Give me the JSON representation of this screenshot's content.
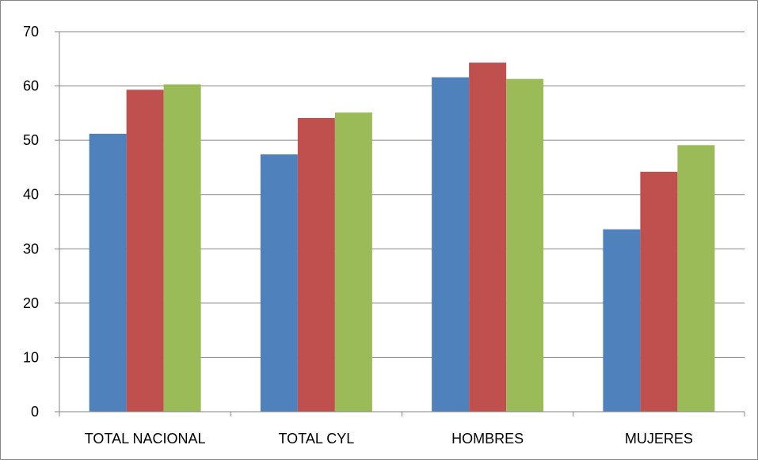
{
  "chart_data": {
    "type": "bar",
    "title": "",
    "xlabel": "",
    "ylabel": "",
    "categories": [
      "TOTAL NACIONAL",
      "TOTAL CYL",
      "HOMBRES",
      "MUJERES"
    ],
    "series": [
      {
        "color": "#4F81BD",
        "values": [
          51.2,
          47.4,
          61.6,
          33.6
        ]
      },
      {
        "color": "#C0504D",
        "values": [
          59.3,
          54.1,
          64.3,
          44.2
        ]
      },
      {
        "color": "#9BBB59",
        "values": [
          60.3,
          55.1,
          61.3,
          49.1
        ]
      }
    ],
    "ylim": [
      0,
      70
    ],
    "yticks": [
      0,
      10,
      20,
      30,
      40,
      50,
      60,
      70
    ],
    "grid": true,
    "legend": "none"
  }
}
